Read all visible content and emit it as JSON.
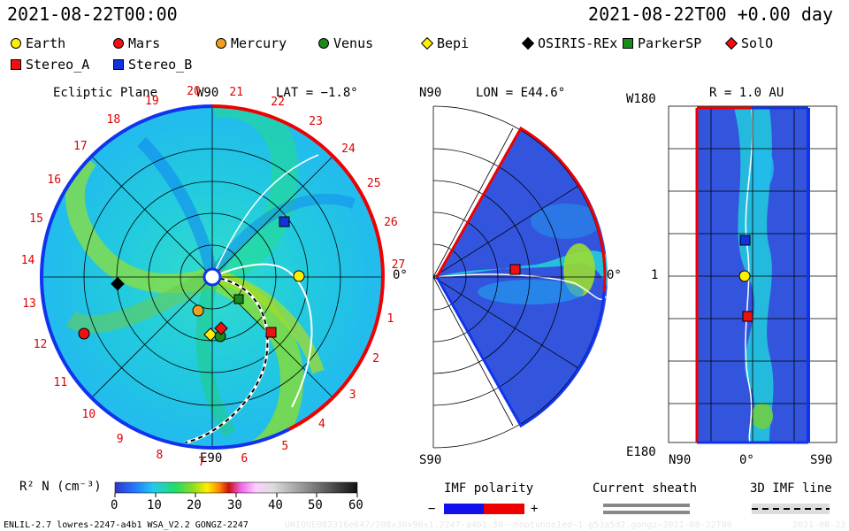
{
  "header": {
    "left_time": "2021-08-22T00:00",
    "right_time": "2021-08-22T00 +0.00 day"
  },
  "legend": [
    {
      "label": "Earth",
      "shape": "circle",
      "color": "#ffee00"
    },
    {
      "label": "Mars",
      "shape": "circle",
      "color": "#ee1111"
    },
    {
      "label": "Mercury",
      "shape": "circle",
      "color": "#f0a020"
    },
    {
      "label": "Venus",
      "shape": "circle",
      "color": "#1a8a1a"
    },
    {
      "label": "Bepi",
      "shape": "diamond",
      "color": "#ffee00"
    },
    {
      "label": "OSIRIS-REx",
      "shape": "diamond",
      "color": "#000000"
    },
    {
      "label": "ParkerSP",
      "shape": "square",
      "color": "#1a8a1a"
    },
    {
      "label": "SolO",
      "shape": "diamond",
      "color": "#ee1111"
    },
    {
      "label": "Stereo_A",
      "shape": "square",
      "color": "#ee1111"
    },
    {
      "label": "Stereo_B",
      "shape": "square",
      "color": "#1133dd"
    }
  ],
  "panels": {
    "ecliptic": {
      "title": "Ecliptic Plane",
      "lat": "LAT = −1.8°",
      "top_label": "W90",
      "bottom_label": "E90",
      "right_label": "0°",
      "hours": [
        "1",
        "2",
        "3",
        "4",
        "5",
        "6",
        "7",
        "8",
        "9",
        "10",
        "11",
        "12",
        "13",
        "14",
        "15",
        "16",
        "17",
        "18",
        "19",
        "20",
        "21",
        "22",
        "23",
        "24",
        "25",
        "26",
        "27"
      ]
    },
    "meridional": {
      "lon": "LON = E44.6°",
      "top_label": "N90",
      "bottom_label": "S90",
      "right_label": "0°"
    },
    "radial": {
      "r": "R = 1.0 AU",
      "top_left": "W180",
      "mid_left": "1",
      "bottom_left": "E180",
      "x_left": "N90",
      "x_mid": "0°",
      "x_right": "S90"
    }
  },
  "colorbar": {
    "label": "R² N (cm⁻³)",
    "ticks": [
      "0",
      "10",
      "20",
      "30",
      "40",
      "50",
      "60"
    ]
  },
  "bottom_legends": {
    "imf_polarity": "IMF polarity",
    "minus": "−",
    "plus": "+",
    "current_sheath": "Current sheath",
    "imf_line": "3D IMF line"
  },
  "footer": {
    "left": "ENLIL-2.7 lowres-2247-a4b1 WSA_V2.2 GONGZ-2247",
    "middle": "UNIQUE082316e647/208x30x90x1.2247-a4b1.30-~noptunno1ed~1.g53a5d2.gongz~2021-08-22T00",
    "right": "2021-08-23"
  }
}
